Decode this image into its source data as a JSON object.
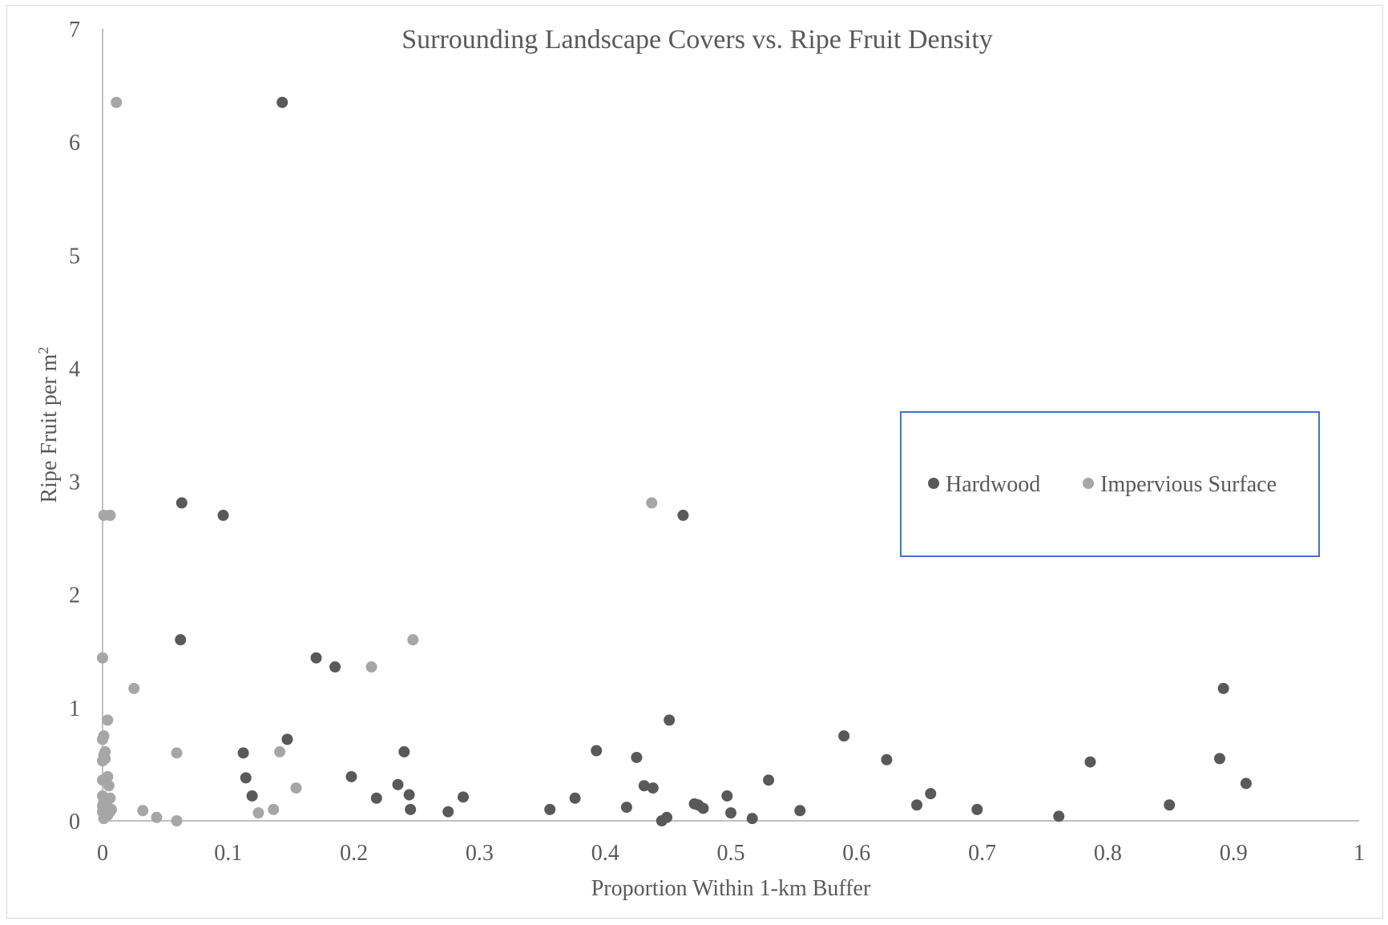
{
  "chart_data": {
    "type": "scatter",
    "title": "Surrounding Landscape Covers vs. Ripe Fruit Density",
    "xlabel": "Proportion Within 1-km Buffer",
    "ylabel_main": "Ripe Fruit per m",
    "ylabel_sup": "2",
    "xlim": [
      0,
      1
    ],
    "ylim": [
      0,
      7
    ],
    "xticks": [
      "0",
      "0.1",
      "0.2",
      "0.3",
      "0.4",
      "0.5",
      "0.6",
      "0.7",
      "0.8",
      "0.9",
      "1"
    ],
    "yticks": [
      "0",
      "1",
      "2",
      "3",
      "4",
      "5",
      "6",
      "7"
    ],
    "grid": false,
    "legend_position": "right",
    "series": [
      {
        "name": "Hardwood",
        "color": "#595959",
        "points": [
          [
            0.143,
            6.35
          ],
          [
            0.063,
            2.81
          ],
          [
            0.096,
            2.7
          ],
          [
            0.462,
            2.7
          ],
          [
            0.062,
            1.6
          ],
          [
            0.17,
            1.44
          ],
          [
            0.185,
            1.36
          ],
          [
            0.892,
            1.17
          ],
          [
            0.451,
            0.89
          ],
          [
            0.147,
            0.72
          ],
          [
            0.59,
            0.75
          ],
          [
            0.24,
            0.61
          ],
          [
            0.112,
            0.6
          ],
          [
            0.393,
            0.62
          ],
          [
            0.425,
            0.56
          ],
          [
            0.624,
            0.54
          ],
          [
            0.786,
            0.52
          ],
          [
            0.889,
            0.55
          ],
          [
            0.91,
            0.33
          ],
          [
            0.114,
            0.38
          ],
          [
            0.198,
            0.39
          ],
          [
            0.53,
            0.36
          ],
          [
            0.235,
            0.32
          ],
          [
            0.431,
            0.31
          ],
          [
            0.438,
            0.29
          ],
          [
            0.119,
            0.22
          ],
          [
            0.218,
            0.2
          ],
          [
            0.244,
            0.23
          ],
          [
            0.287,
            0.21
          ],
          [
            0.376,
            0.2
          ],
          [
            0.497,
            0.22
          ],
          [
            0.659,
            0.24
          ],
          [
            0.471,
            0.15
          ],
          [
            0.474,
            0.14
          ],
          [
            0.478,
            0.11
          ],
          [
            0.648,
            0.14
          ],
          [
            0.849,
            0.14
          ],
          [
            0.245,
            0.1
          ],
          [
            0.275,
            0.08
          ],
          [
            0.356,
            0.1
          ],
          [
            0.417,
            0.12
          ],
          [
            0.5,
            0.07
          ],
          [
            0.555,
            0.09
          ],
          [
            0.696,
            0.1
          ],
          [
            0.445,
            0.0
          ],
          [
            0.449,
            0.03
          ],
          [
            0.517,
            0.02
          ],
          [
            0.761,
            0.04
          ]
        ]
      },
      {
        "name": "Impervious Surface",
        "color": "#a6a6a6",
        "points": [
          [
            0.011,
            6.35
          ],
          [
            0.437,
            2.81
          ],
          [
            0.001,
            2.7
          ],
          [
            0.006,
            2.7
          ],
          [
            0.247,
            1.6
          ],
          [
            0.0,
            1.44
          ],
          [
            0.214,
            1.36
          ],
          [
            0.025,
            1.17
          ],
          [
            0.004,
            0.89
          ],
          [
            0.001,
            0.75
          ],
          [
            0.0,
            0.72
          ],
          [
            0.059,
            0.6
          ],
          [
            0.141,
            0.61
          ],
          [
            0.002,
            0.61
          ],
          [
            0.001,
            0.58
          ],
          [
            0.002,
            0.55
          ],
          [
            0.0,
            0.53
          ],
          [
            0.004,
            0.39
          ],
          [
            0.0,
            0.36
          ],
          [
            0.005,
            0.31
          ],
          [
            0.154,
            0.29
          ],
          [
            0.0,
            0.22
          ],
          [
            0.006,
            0.2
          ],
          [
            0.001,
            0.17
          ],
          [
            0.0,
            0.13
          ],
          [
            0.003,
            0.15
          ],
          [
            0.005,
            0.11
          ],
          [
            0.007,
            0.1
          ],
          [
            0.0,
            0.08
          ],
          [
            0.006,
            0.08
          ],
          [
            0.004,
            0.05
          ],
          [
            0.001,
            0.02
          ],
          [
            0.032,
            0.09
          ],
          [
            0.043,
            0.03
          ],
          [
            0.059,
            0.0
          ],
          [
            0.124,
            0.07
          ],
          [
            0.136,
            0.1
          ]
        ]
      }
    ]
  }
}
